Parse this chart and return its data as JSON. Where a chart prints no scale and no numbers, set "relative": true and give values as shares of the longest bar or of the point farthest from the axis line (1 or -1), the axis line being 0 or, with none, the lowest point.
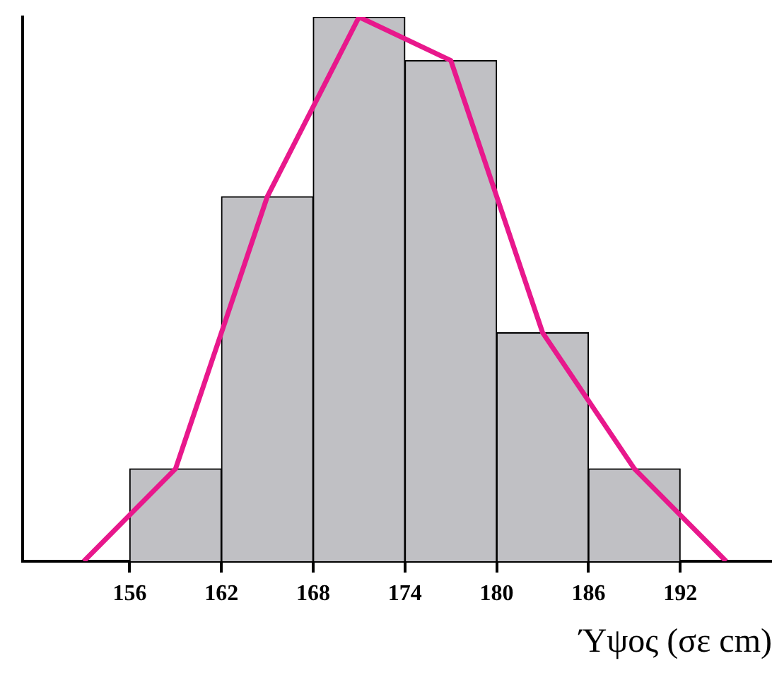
{
  "chart_data": {
    "type": "histogram",
    "xlabel": "Ύψος (σε cm)",
    "relative": true,
    "bins": [
      156,
      162,
      168,
      174,
      180,
      186,
      192
    ],
    "values": [
      0.17,
      0.67,
      1,
      0.92,
      0.42,
      0.17
    ],
    "color": "#c0c0c4",
    "series": [
      {
        "type": "line",
        "color": "#e8188c",
        "x": [
          153,
          159,
          165,
          171,
          177,
          183,
          189,
          195
        ],
        "values": [
          0,
          0.17,
          0.67,
          1,
          0.92,
          0.42,
          0.17,
          0
        ]
      }
    ],
    "xlim": [
      149,
      198
    ],
    "xticks": [
      156,
      162,
      168,
      174,
      180,
      186,
      192
    ],
    "grid": false,
    "legend": false
  }
}
